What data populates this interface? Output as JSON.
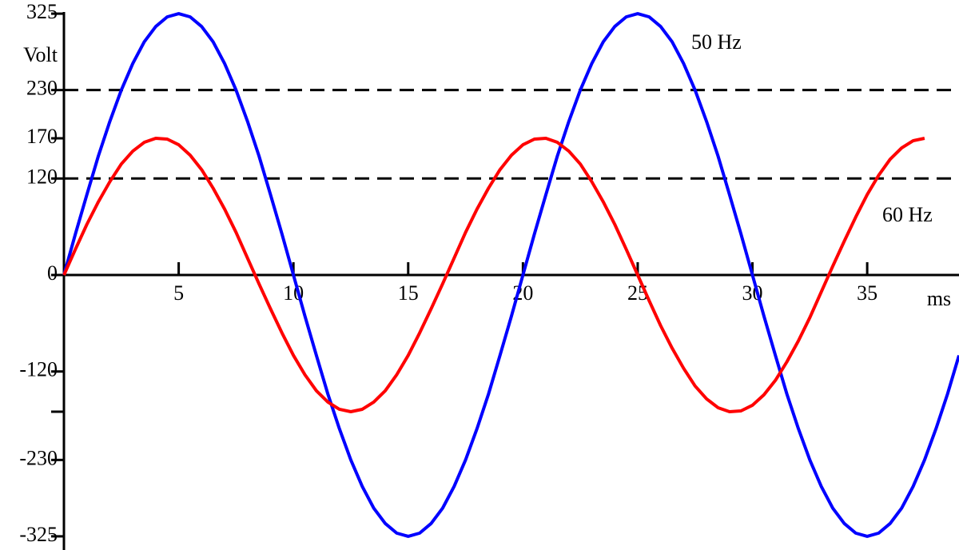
{
  "chart_data": {
    "type": "line",
    "y_label": "Volt",
    "x_label": "ms",
    "x": [
      0,
      0.5,
      1,
      1.5,
      2,
      2.5,
      3,
      3.5,
      4,
      4.5,
      5,
      5.5,
      6,
      6.5,
      7,
      7.5,
      8,
      8.5,
      9,
      9.5,
      10,
      10.5,
      11,
      11.5,
      12,
      12.5,
      13,
      13.5,
      14,
      14.5,
      15,
      15.5,
      16,
      16.5,
      17,
      17.5,
      18,
      18.5,
      19,
      19.5,
      20,
      20.5,
      21,
      21.5,
      22,
      22.5,
      23,
      23.5,
      24,
      24.5,
      25,
      25.5,
      26,
      26.5,
      27,
      27.5,
      28,
      28.5,
      29,
      29.5,
      30,
      30.5,
      31,
      31.5,
      32,
      32.5,
      33,
      33.5,
      34,
      34.5,
      35,
      35.5,
      36,
      36.5,
      37,
      37.5,
      38,
      38.5,
      39
    ],
    "series": [
      {
        "name": "50 Hz",
        "color": "#0000ff",
        "values": [
          0,
          51,
          100,
          148,
          191,
          230,
          263,
          290,
          309,
          321,
          325,
          321,
          309,
          290,
          263,
          230,
          191,
          148,
          100,
          51,
          0,
          -51,
          -100,
          -148,
          -191,
          -230,
          -263,
          -290,
          -309,
          -321,
          -325,
          -321,
          -309,
          -290,
          -263,
          -230,
          -191,
          -148,
          -100,
          -51,
          0,
          51,
          100,
          148,
          191,
          230,
          263,
          290,
          309,
          321,
          325,
          321,
          309,
          290,
          263,
          230,
          191,
          148,
          100,
          51,
          0,
          -51,
          -100,
          -148,
          -191,
          -230,
          -263,
          -290,
          -309,
          -321,
          -325,
          -321,
          -309,
          -290,
          -263,
          -230,
          -191,
          -148,
          -100
        ]
      },
      {
        "name": "60 Hz",
        "color": "#ff0000",
        "values": [
          0,
          32,
          63,
          91,
          116,
          138,
          154,
          165,
          170,
          169,
          162,
          149,
          131,
          108,
          82,
          53,
          21,
          -11,
          -42,
          -72,
          -100,
          -124,
          -144,
          -158,
          -167,
          -170,
          -167,
          -158,
          -144,
          -124,
          -100,
          -72,
          -42,
          -11,
          21,
          53,
          82,
          108,
          131,
          149,
          162,
          169,
          170,
          165,
          154,
          138,
          116,
          91,
          63,
          32,
          0,
          -32,
          -63,
          -91,
          -116,
          -138,
          -154,
          -165,
          -170,
          -169,
          -162,
          -149,
          -131,
          -108,
          -82,
          -53,
          -21,
          11,
          42,
          72,
          100,
          124,
          144,
          158,
          167,
          170,
          null,
          null,
          null
        ]
      }
    ],
    "xlim": [
      0,
      39
    ],
    "ylim": [
      -342,
      342
    ],
    "xticks": [
      5,
      10,
      15,
      20,
      25,
      30,
      35
    ],
    "yticks": [
      325,
      230,
      170,
      120,
      0,
      -120,
      {
        "value": -170,
        "label": null
      },
      -230,
      -325
    ],
    "reference_lines": [
      230,
      120
    ]
  }
}
